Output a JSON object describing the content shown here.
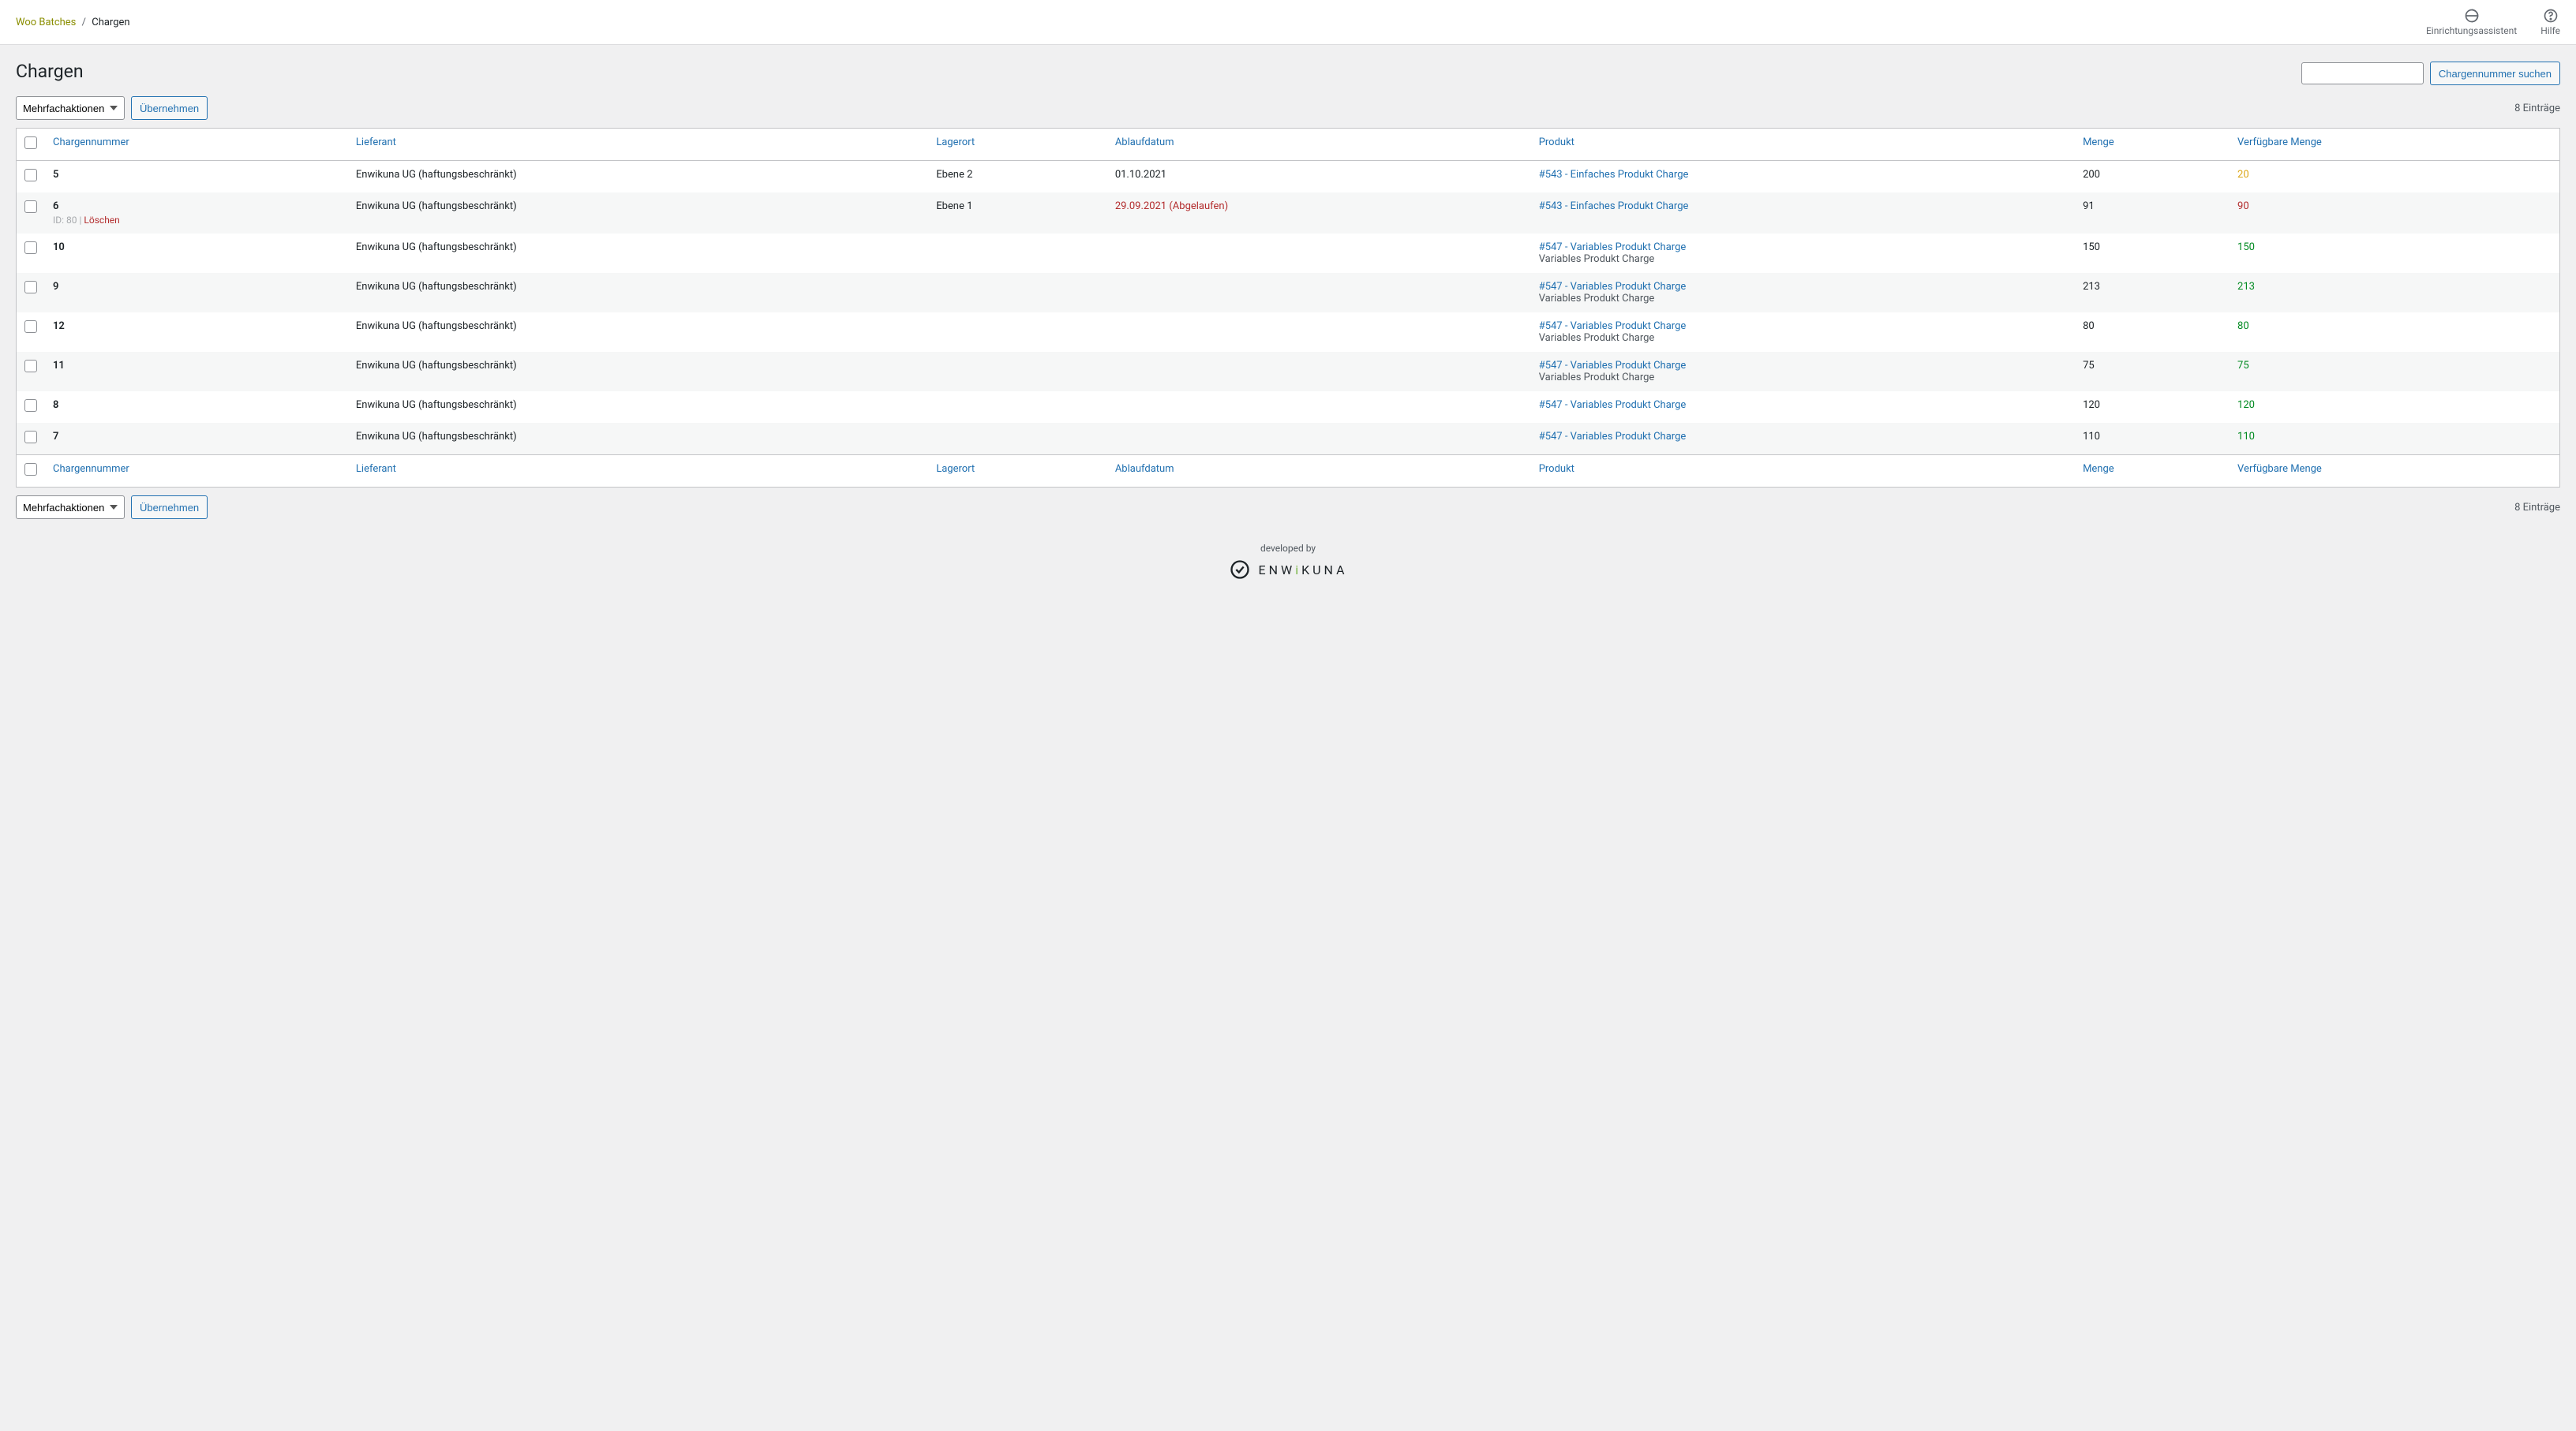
{
  "breadcrumb": {
    "root": "Woo Batches",
    "sep": "/",
    "current": "Chargen"
  },
  "header_actions": {
    "setup": "Einrichtungsassistent",
    "help": "Hilfe"
  },
  "page_title": "Chargen",
  "bulk_label": "Mehrfachaktionen",
  "apply_label": "Übernehmen",
  "search_button": "Chargennummer suchen",
  "count_label": "8 Einträge",
  "columns": {
    "batch_no": "Chargennummer",
    "supplier": "Lieferant",
    "storage": "Lagerort",
    "expiry": "Ablaufdatum",
    "product": "Produkt",
    "qty": "Menge",
    "avail": "Verfügbare Menge"
  },
  "rows": [
    {
      "batch_no": "5",
      "supplier": "Enwikuna UG (haftungsbeschränkt)",
      "storage": "Ebene 2",
      "expiry": "01.10.2021",
      "expiry_class": "",
      "product_link": "#543 - Einfaches Produkt Charge",
      "product_sub": "",
      "qty": "200",
      "avail": "20",
      "avail_class": "avail-warn",
      "row_id": "",
      "row_del": ""
    },
    {
      "batch_no": "6",
      "supplier": "Enwikuna UG (haftungsbeschränkt)",
      "storage": "Ebene 1",
      "expiry": "29.09.2021 (Abgelaufen)",
      "expiry_class": "expired",
      "product_link": "#543 - Einfaches Produkt Charge",
      "product_sub": "",
      "qty": "91",
      "avail": "90",
      "avail_class": "avail-bad",
      "row_id": "ID: 80 | ",
      "row_del": "Löschen"
    },
    {
      "batch_no": "10",
      "supplier": "Enwikuna UG (haftungsbeschränkt)",
      "storage": "",
      "expiry": "",
      "expiry_class": "",
      "product_link": "#547 - Variables Produkt Charge",
      "product_sub": "Variables Produkt Charge",
      "qty": "150",
      "avail": "150",
      "avail_class": "avail-ok",
      "row_id": "",
      "row_del": ""
    },
    {
      "batch_no": "9",
      "supplier": "Enwikuna UG (haftungsbeschränkt)",
      "storage": "",
      "expiry": "",
      "expiry_class": "",
      "product_link": "#547 - Variables Produkt Charge",
      "product_sub": "Variables Produkt Charge",
      "qty": "213",
      "avail": "213",
      "avail_class": "avail-ok",
      "row_id": "",
      "row_del": ""
    },
    {
      "batch_no": "12",
      "supplier": "Enwikuna UG (haftungsbeschränkt)",
      "storage": "",
      "expiry": "",
      "expiry_class": "",
      "product_link": "#547 - Variables Produkt Charge",
      "product_sub": "Variables Produkt Charge",
      "qty": "80",
      "avail": "80",
      "avail_class": "avail-ok",
      "row_id": "",
      "row_del": ""
    },
    {
      "batch_no": "11",
      "supplier": "Enwikuna UG (haftungsbeschränkt)",
      "storage": "",
      "expiry": "",
      "expiry_class": "",
      "product_link": "#547 - Variables Produkt Charge",
      "product_sub": "Variables Produkt Charge",
      "qty": "75",
      "avail": "75",
      "avail_class": "avail-ok",
      "row_id": "",
      "row_del": ""
    },
    {
      "batch_no": "8",
      "supplier": "Enwikuna UG (haftungsbeschränkt)",
      "storage": "",
      "expiry": "",
      "expiry_class": "",
      "product_link": "#547 - Variables Produkt Charge",
      "product_sub": "",
      "qty": "120",
      "avail": "120",
      "avail_class": "avail-ok",
      "row_id": "",
      "row_del": ""
    },
    {
      "batch_no": "7",
      "supplier": "Enwikuna UG (haftungsbeschränkt)",
      "storage": "",
      "expiry": "",
      "expiry_class": "",
      "product_link": "#547 - Variables Produkt Charge",
      "product_sub": "",
      "qty": "110",
      "avail": "110",
      "avail_class": "avail-ok",
      "row_id": "",
      "row_del": ""
    }
  ],
  "footer": {
    "dev_by": "developed by",
    "brand_pre": "ENW",
    "brand_i": "i",
    "brand_post": "KUNA"
  }
}
